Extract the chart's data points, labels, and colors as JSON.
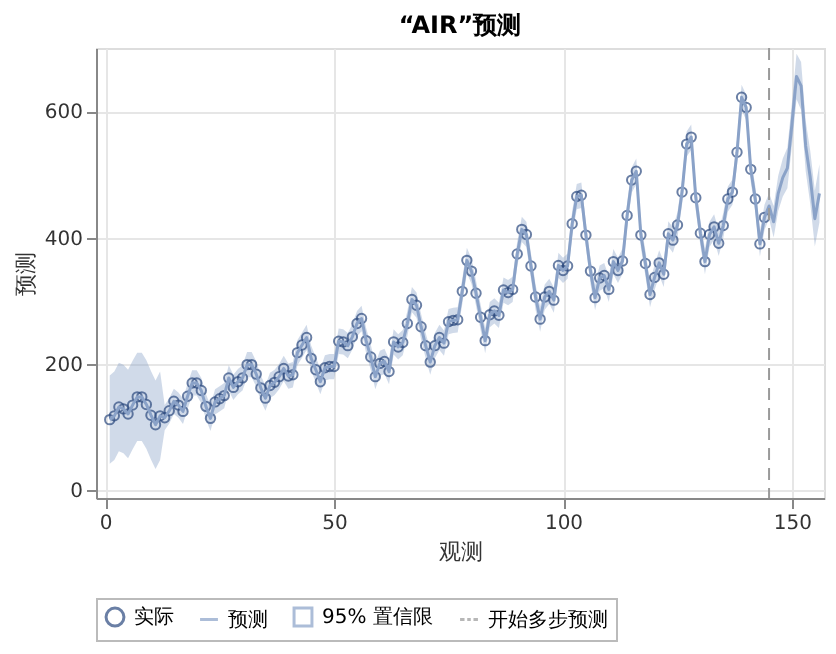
{
  "chart_data": {
    "type": "scatter",
    "title": "“AIR”预测",
    "xlabel": "观测",
    "ylabel": "预测",
    "xlim": [
      -2,
      157
    ],
    "xticks": [
      0,
      50,
      100,
      150
    ],
    "ylim": [
      -12,
      700
    ],
    "yticks": [
      0,
      200,
      400,
      600
    ],
    "grid": true,
    "legend": "bottom",
    "annotations": [
      "95% 置信限"
    ],
    "ref_lines": [
      {
        "axis": "x",
        "value": 145,
        "label": "开始多步预测",
        "color": "#9a9a9a",
        "line_style": "dashed"
      }
    ],
    "series": [
      {
        "name": "实际",
        "marker": "circle",
        "color": "#2c4a7f",
        "x": [
          1,
          2,
          3,
          4,
          5,
          6,
          7,
          8,
          9,
          10,
          11,
          12,
          13,
          14,
          15,
          16,
          17,
          18,
          19,
          20,
          21,
          22,
          23,
          24,
          25,
          26,
          27,
          28,
          29,
          30,
          31,
          32,
          33,
          34,
          35,
          36,
          37,
          38,
          39,
          40,
          41,
          42,
          43,
          44,
          45,
          46,
          47,
          48,
          49,
          50,
          51,
          52,
          53,
          54,
          55,
          56,
          57,
          58,
          59,
          60,
          61,
          62,
          63,
          64,
          65,
          66,
          67,
          68,
          69,
          70,
          71,
          72,
          73,
          74,
          75,
          76,
          77,
          78,
          79,
          80,
          81,
          82,
          83,
          84,
          85,
          86,
          87,
          88,
          89,
          90,
          91,
          92,
          93,
          94,
          95,
          96,
          97,
          98,
          99,
          100,
          101,
          102,
          103,
          104,
          105,
          106,
          107,
          108,
          109,
          110,
          111,
          112,
          113,
          114,
          115,
          116,
          117,
          118,
          119,
          120,
          121,
          122,
          123,
          124,
          125,
          126,
          127,
          128,
          129,
          130,
          131,
          132,
          133,
          134,
          135,
          136,
          137,
          138,
          139,
          140,
          141,
          142,
          143,
          144
        ],
        "values": [
          112,
          118,
          132,
          129,
          121,
          135,
          148,
          148,
          136,
          119,
          104,
          118,
          115,
          126,
          141,
          135,
          125,
          149,
          170,
          170,
          158,
          133,
          114,
          140,
          145,
          150,
          178,
          163,
          172,
          178,
          199,
          199,
          184,
          162,
          146,
          166,
          171,
          180,
          193,
          181,
          183,
          218,
          230,
          242,
          209,
          191,
          172,
          194,
          196,
          196,
          236,
          235,
          229,
          243,
          264,
          272,
          237,
          211,
          180,
          201,
          204,
          188,
          235,
          227,
          234,
          264,
          302,
          293,
          259,
          229,
          203,
          229,
          242,
          233,
          267,
          269,
          270,
          315,
          364,
          347,
          312,
          274,
          237,
          278,
          284,
          277,
          317,
          313,
          318,
          374,
          413,
          405,
          355,
          306,
          271,
          306,
          315,
          301,
          356,
          348,
          355,
          422,
          465,
          467,
          404,
          347,
          305,
          336,
          340,
          318,
          362,
          348,
          363,
          435,
          491,
          505,
          404,
          359,
          310,
          337,
          360,
          342,
          406,
          396,
          420,
          472,
          548,
          559,
          463,
          407,
          362,
          405,
          417,
          391,
          419,
          461,
          472,
          535,
          622,
          606,
          508,
          461,
          390,
          432
        ]
      },
      {
        "name": "预测",
        "type": "line",
        "line_style": "solid",
        "color": "#8aa2c8",
        "x": [
          1,
          2,
          3,
          4,
          5,
          6,
          7,
          8,
          9,
          10,
          11,
          12,
          13,
          14,
          15,
          16,
          17,
          18,
          19,
          20,
          21,
          22,
          23,
          24,
          25,
          26,
          27,
          28,
          29,
          30,
          31,
          32,
          33,
          34,
          35,
          36,
          37,
          38,
          39,
          40,
          41,
          42,
          43,
          44,
          45,
          46,
          47,
          48,
          49,
          50,
          51,
          52,
          53,
          54,
          55,
          56,
          57,
          58,
          59,
          60,
          61,
          62,
          63,
          64,
          65,
          66,
          67,
          68,
          69,
          70,
          71,
          72,
          73,
          74,
          75,
          76,
          77,
          78,
          79,
          80,
          81,
          82,
          83,
          84,
          85,
          86,
          87,
          88,
          89,
          90,
          91,
          92,
          93,
          94,
          95,
          96,
          97,
          98,
          99,
          100,
          101,
          102,
          103,
          104,
          105,
          106,
          107,
          108,
          109,
          110,
          111,
          112,
          113,
          114,
          115,
          116,
          117,
          118,
          119,
          120,
          121,
          122,
          123,
          124,
          125,
          126,
          127,
          128,
          129,
          130,
          131,
          132,
          133,
          134,
          135,
          136,
          137,
          138,
          139,
          140,
          141,
          142,
          143,
          144,
          145,
          146,
          147,
          148,
          149,
          150,
          151,
          152,
          153,
          154,
          155,
          156
        ],
        "values": [
          112,
          118,
          132,
          129,
          121,
          135,
          148,
          148,
          136,
          119,
          104,
          118,
          115,
          126,
          141,
          135,
          125,
          149,
          170,
          170,
          158,
          133,
          114,
          140,
          145,
          150,
          178,
          163,
          172,
          178,
          199,
          199,
          184,
          162,
          146,
          166,
          171,
          180,
          193,
          181,
          183,
          218,
          230,
          242,
          209,
          191,
          172,
          194,
          196,
          196,
          236,
          235,
          229,
          243,
          264,
          272,
          237,
          211,
          180,
          201,
          204,
          188,
          235,
          227,
          234,
          264,
          302,
          293,
          259,
          229,
          203,
          229,
          242,
          233,
          267,
          269,
          270,
          315,
          364,
          347,
          312,
          274,
          237,
          278,
          284,
          277,
          317,
          313,
          318,
          374,
          413,
          405,
          355,
          306,
          271,
          306,
          315,
          301,
          356,
          348,
          355,
          422,
          465,
          467,
          404,
          347,
          305,
          336,
          340,
          318,
          362,
          348,
          363,
          435,
          491,
          505,
          404,
          359,
          310,
          337,
          360,
          342,
          406,
          396,
          420,
          472,
          548,
          559,
          463,
          407,
          362,
          405,
          417,
          391,
          419,
          461,
          472,
          535,
          622,
          606,
          508,
          461,
          390,
          432,
          450,
          425,
          470,
          495,
          510,
          580,
          655,
          640,
          545,
          495,
          430,
          470
        ],
        "lower": [
          42,
          48,
          62,
          59,
          51,
          65,
          78,
          78,
          66,
          49,
          34,
          48,
          95,
          106,
          121,
          115,
          105,
          129,
          150,
          150,
          138,
          113,
          94,
          120,
          125,
          130,
          158,
          143,
          152,
          158,
          179,
          179,
          164,
          142,
          126,
          146,
          151,
          160,
          173,
          161,
          163,
          198,
          210,
          222,
          189,
          171,
          152,
          174,
          176,
          176,
          216,
          215,
          209,
          223,
          244,
          252,
          217,
          191,
          160,
          181,
          184,
          168,
          215,
          207,
          214,
          244,
          282,
          273,
          239,
          209,
          183,
          209,
          222,
          213,
          247,
          249,
          250,
          295,
          344,
          327,
          292,
          254,
          217,
          258,
          264,
          257,
          297,
          293,
          298,
          354,
          393,
          385,
          335,
          286,
          251,
          286,
          295,
          281,
          336,
          328,
          335,
          402,
          445,
          447,
          384,
          327,
          285,
          316,
          320,
          298,
          342,
          328,
          343,
          415,
          471,
          485,
          384,
          339,
          290,
          317,
          340,
          322,
          386,
          376,
          400,
          452,
          528,
          539,
          443,
          387,
          342,
          385,
          397,
          371,
          399,
          441,
          452,
          515,
          602,
          586,
          488,
          441,
          370,
          412,
          430,
          400,
          442,
          465,
          478,
          546,
          619,
          602,
          505,
          453,
          386,
          424
        ],
        "upper": [
          182,
          188,
          202,
          199,
          191,
          205,
          218,
          218,
          206,
          189,
          174,
          188,
          135,
          146,
          161,
          155,
          145,
          169,
          190,
          190,
          178,
          153,
          134,
          160,
          165,
          170,
          198,
          183,
          192,
          198,
          219,
          219,
          204,
          182,
          166,
          186,
          191,
          200,
          213,
          201,
          203,
          238,
          250,
          262,
          229,
          211,
          192,
          214,
          216,
          216,
          256,
          255,
          249,
          263,
          284,
          292,
          257,
          231,
          200,
          221,
          224,
          208,
          255,
          247,
          254,
          284,
          322,
          313,
          279,
          249,
          223,
          249,
          262,
          253,
          287,
          289,
          290,
          335,
          384,
          367,
          332,
          294,
          257,
          298,
          304,
          297,
          337,
          333,
          338,
          394,
          433,
          425,
          375,
          326,
          291,
          326,
          335,
          321,
          376,
          368,
          375,
          442,
          485,
          487,
          424,
          367,
          325,
          356,
          360,
          338,
          382,
          368,
          383,
          455,
          511,
          525,
          424,
          379,
          330,
          357,
          380,
          362,
          426,
          416,
          440,
          492,
          568,
          579,
          483,
          427,
          382,
          425,
          437,
          411,
          439,
          481,
          492,
          555,
          642,
          626,
          528,
          481,
          410,
          452,
          470,
          450,
          498,
          525,
          542,
          614,
          691,
          678,
          585,
          537,
          474,
          516
        ]
      }
    ]
  }
}
